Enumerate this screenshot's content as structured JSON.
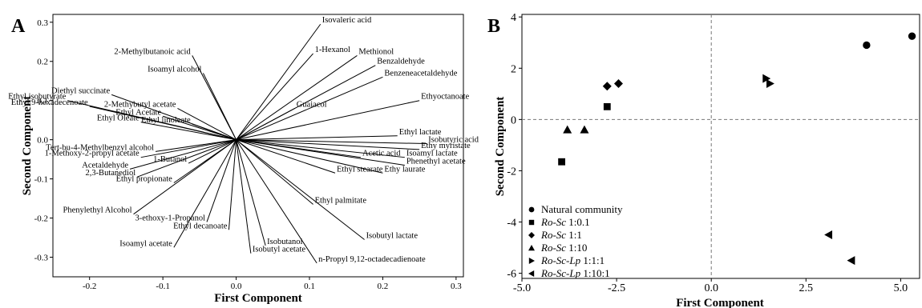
{
  "chart_data": [
    {
      "panel_label": "A",
      "type": "line",
      "subtype": "loading-plot",
      "xlabel": "First Component",
      "ylabel": "Second Component",
      "xlim": [
        -0.25,
        0.31
      ],
      "ylim": [
        -0.35,
        0.32
      ],
      "xticks": [
        -0.2,
        -0.1,
        0.0,
        0.1,
        0.2,
        0.3
      ],
      "xtick_labels": [
        "-0.2",
        "-0.1",
        "0.0",
        "0.1",
        "0.2",
        "0.3"
      ],
      "yticks": [
        -0.3,
        -0.2,
        -0.1,
        0.0,
        0.1,
        0.2,
        0.3
      ],
      "ytick_labels": [
        "-0.3",
        "-0.2",
        "-0.1",
        "0.0",
        "0.1",
        "0.2",
        "0.3"
      ],
      "grid": false,
      "loadings": [
        {
          "label": "Isovaleric acid",
          "x": 0.115,
          "y": 0.295
        },
        {
          "label": "1-Hexanol",
          "x": 0.105,
          "y": 0.22
        },
        {
          "label": "Methionol",
          "x": 0.165,
          "y": 0.215
        },
        {
          "label": "Benzaldehyde",
          "x": 0.19,
          "y": 0.19
        },
        {
          "label": "Benzeneacetaldehyde",
          "x": 0.2,
          "y": 0.16
        },
        {
          "label": "Ethyoctanoate",
          "x": 0.25,
          "y": 0.1
        },
        {
          "label": "Guaiacol",
          "x": 0.08,
          "y": 0.08
        },
        {
          "label": "Ethyl lactate",
          "x": 0.22,
          "y": 0.01
        },
        {
          "label": "Isobutyric acid",
          "x": 0.26,
          "y": -0.01
        },
        {
          "label": "Ethy myristate",
          "x": 0.25,
          "y": -0.025
        },
        {
          "label": "Isoamyl lactate",
          "x": 0.23,
          "y": -0.045
        },
        {
          "label": "Phenethyl acetate",
          "x": 0.23,
          "y": -0.065
        },
        {
          "label": "Ethy laurate",
          "x": 0.2,
          "y": -0.085
        },
        {
          "label": "Acetic acid",
          "x": 0.17,
          "y": -0.045
        },
        {
          "label": "Ethyl stearate",
          "x": 0.135,
          "y": -0.085
        },
        {
          "label": "Ethyl palmitate",
          "x": 0.105,
          "y": -0.165
        },
        {
          "label": "Isobutyl lactate",
          "x": 0.175,
          "y": -0.255
        },
        {
          "label": "n-Propyl 9,12-octadecadienoate",
          "x": 0.11,
          "y": -0.315
        },
        {
          "label": "Isobutanol",
          "x": 0.04,
          "y": -0.27
        },
        {
          "label": "Isobutyl acetate",
          "x": 0.02,
          "y": -0.29
        },
        {
          "label": "Ethyl decanoate",
          "x": -0.01,
          "y": -0.23
        },
        {
          "label": "Isoamyl acetate",
          "x": -0.085,
          "y": -0.275
        },
        {
          "label": "3-ethoxy-1-Propanol",
          "x": -0.04,
          "y": -0.21
        },
        {
          "label": "Phenylethyl Alcohol",
          "x": -0.14,
          "y": -0.19
        },
        {
          "label": "Ethyl propionate",
          "x": -0.085,
          "y": -0.11
        },
        {
          "label": "2,3-Butanediol",
          "x": -0.135,
          "y": -0.095
        },
        {
          "label": "Acetaldehyde",
          "x": -0.145,
          "y": -0.075
        },
        {
          "label": "1-Butanol",
          "x": -0.065,
          "y": -0.06
        },
        {
          "label": "1-Methoxy-2-propyl acetate",
          "x": -0.13,
          "y": -0.045
        },
        {
          "label": "Tert-bu-4-Methylbenzyl alcohol",
          "x": -0.11,
          "y": -0.03
        },
        {
          "label": "Ethyl Oleate",
          "x": -0.13,
          "y": 0.045
        },
        {
          "label": "Ethyl Acetate",
          "x": -0.1,
          "y": 0.06
        },
        {
          "label": "Ethyl 9-hexadecenoate",
          "x": -0.2,
          "y": 0.085
        },
        {
          "label": "Ethyl isobutyrate",
          "x": -0.23,
          "y": 0.1
        },
        {
          "label": "Diethyl succinate",
          "x": -0.17,
          "y": 0.115
        },
        {
          "label": "2-Methybutyl acetate",
          "x": -0.08,
          "y": 0.08
        },
        {
          "label": "Ethyl linoleate",
          "x": -0.06,
          "y": 0.04
        },
        {
          "label": "Isoamyl alcohol",
          "x": -0.045,
          "y": 0.17
        },
        {
          "label": "2-Methylbutanoic acid",
          "x": -0.06,
          "y": 0.215
        }
      ]
    },
    {
      "panel_label": "B",
      "type": "scatter",
      "xlabel": "First Component",
      "ylabel": "Second Component",
      "xlim": [
        -5.0,
        5.5
      ],
      "ylim": [
        -6.2,
        4.1
      ],
      "xticks": [
        -5.0,
        -2.5,
        0.0,
        2.5,
        5.0
      ],
      "xtick_labels": [
        "-5.0",
        "-2.5",
        "0.0",
        "2.5",
        "5.0"
      ],
      "yticks": [
        -6,
        -4,
        -2,
        0,
        2,
        4
      ],
      "ytick_labels": [
        "-6",
        "-4",
        "-2",
        "0",
        "2",
        "4"
      ],
      "reference_lines": {
        "x": 0,
        "y": 0,
        "style": "dashed"
      },
      "grid": false,
      "legend_position": "bottom-left",
      "series": [
        {
          "name": "Natural community",
          "name_prefix_italic": "",
          "name_suffix": "Natural community",
          "marker": "circle",
          "points": [
            {
              "x": 4.1,
              "y": 2.9
            },
            {
              "x": 5.3,
              "y": 3.25
            }
          ]
        },
        {
          "name": "Ro-Sc 1:0.1",
          "name_prefix_italic": "Ro-Sc",
          "name_suffix": " 1:0.1",
          "marker": "square",
          "points": [
            {
              "x": -2.75,
              "y": 0.5
            },
            {
              "x": -3.95,
              "y": -1.65
            }
          ]
        },
        {
          "name": "Ro-Sc 1:1",
          "name_prefix_italic": "Ro-Sc",
          "name_suffix": " 1:1",
          "marker": "diamond",
          "points": [
            {
              "x": -2.75,
              "y": 1.3
            },
            {
              "x": -2.45,
              "y": 1.4
            }
          ]
        },
        {
          "name": "Ro-Sc 1:10",
          "name_prefix_italic": "Ro-Sc",
          "name_suffix": " 1:10",
          "marker": "triangle-up",
          "points": [
            {
              "x": -3.8,
              "y": -0.4
            },
            {
              "x": -3.35,
              "y": -0.4
            }
          ]
        },
        {
          "name": "Ro-Sc-Lp 1:1:1",
          "name_prefix_italic": "Ro-Sc-Lp",
          "name_suffix": " 1:1:1",
          "marker": "triangle-right",
          "points": [
            {
              "x": 1.45,
              "y": 1.6
            },
            {
              "x": 1.55,
              "y": 1.4
            }
          ]
        },
        {
          "name": "Ro-Sc-Lp 1:10:1",
          "name_prefix_italic": "Ro-Sc-Lp",
          "name_suffix": " 1:10:1",
          "marker": "triangle-left",
          "points": [
            {
              "x": 3.1,
              "y": -4.5
            },
            {
              "x": 3.7,
              "y": -5.5
            }
          ]
        }
      ]
    }
  ]
}
